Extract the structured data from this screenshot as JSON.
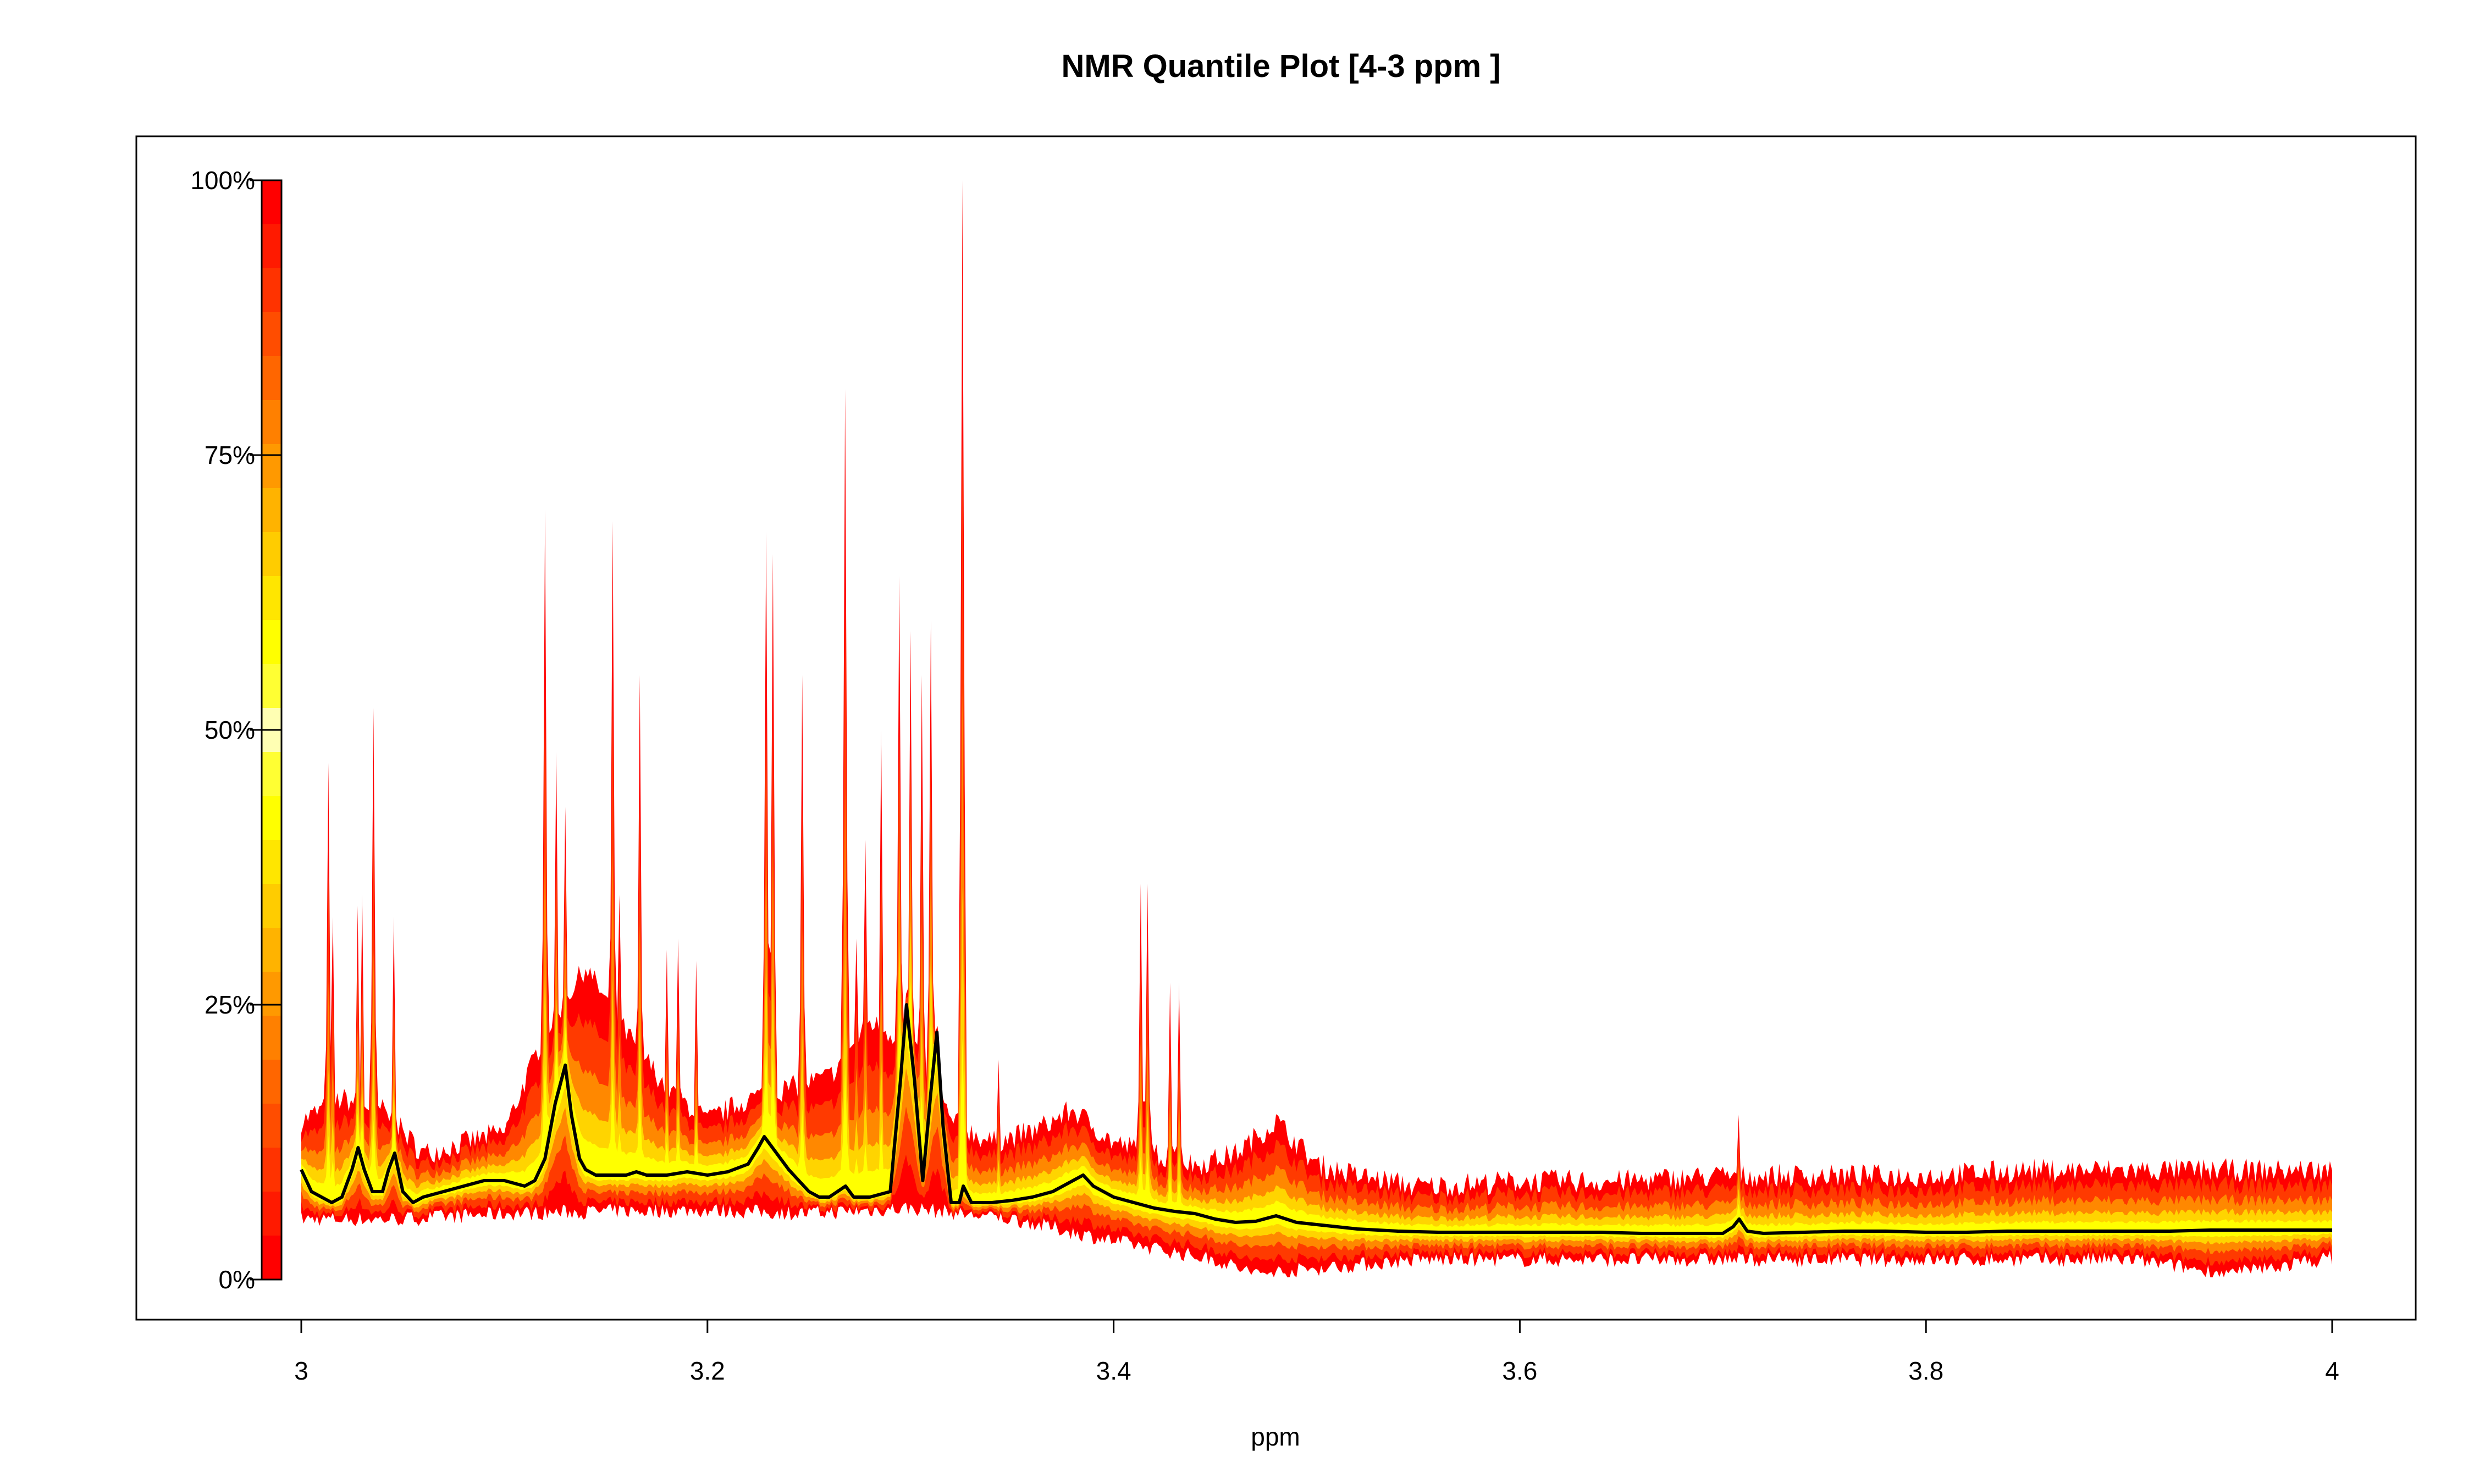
{
  "chart_data": {
    "type": "area",
    "title": "NMR Quantile Plot [4-3 ppm ]",
    "xlabel": "ppm",
    "ylabel": "",
    "xlim": [
      3,
      4
    ],
    "ylim": [
      0,
      100
    ],
    "x_ticks": [
      3,
      3.2,
      3.4,
      3.6,
      3.8,
      4
    ],
    "x_tick_labels": [
      "3",
      "3.2",
      "3.4",
      "3.6",
      "3.8",
      "4"
    ],
    "y_ticks": [
      0,
      25,
      50,
      75,
      100
    ],
    "y_tick_labels": [
      "0%",
      "25%",
      "50%",
      "75%",
      "100%"
    ],
    "grid": false,
    "legend": "left color bar",
    "colors": {
      "band_max": "#ff0000",
      "band_outer": "#ff3a00",
      "band_mid": "#ff8800",
      "band_inner": "#ffd400",
      "band_center": "#ffff00",
      "median_line": "#000000"
    },
    "color_scale": [
      "#ff0000",
      "#ff1a00",
      "#ff3300",
      "#ff4d00",
      "#ff6600",
      "#ff8000",
      "#ff9900",
      "#ffb300",
      "#ffcc00",
      "#ffe600",
      "#ffff00",
      "#ffff33",
      "#ffffb3",
      "#ffff33",
      "#ffff00",
      "#ffe600",
      "#ffcc00",
      "#ffb300",
      "#ff9900",
      "#ff8000",
      "#ff6600",
      "#ff4d00",
      "#ff3300",
      "#ff1a00",
      "#ff0000"
    ],
    "median_series": {
      "name": "",
      "x": [
        3.0,
        3.005,
        3.01,
        3.015,
        3.02,
        3.025,
        3.028,
        3.031,
        3.035,
        3.04,
        3.043,
        3.046,
        3.05,
        3.055,
        3.06,
        3.07,
        3.08,
        3.09,
        3.1,
        3.11,
        3.115,
        3.12,
        3.125,
        3.13,
        3.133,
        3.137,
        3.14,
        3.145,
        3.15,
        3.155,
        3.16,
        3.165,
        3.17,
        3.18,
        3.19,
        3.2,
        3.21,
        3.22,
        3.225,
        3.228,
        3.232,
        3.236,
        3.24,
        3.245,
        3.25,
        3.255,
        3.26,
        3.268,
        3.272,
        3.28,
        3.29,
        3.295,
        3.298,
        3.302,
        3.306,
        3.31,
        3.313,
        3.316,
        3.32,
        3.324,
        3.326,
        3.33,
        3.34,
        3.35,
        3.36,
        3.37,
        3.38,
        3.385,
        3.39,
        3.4,
        3.41,
        3.42,
        3.43,
        3.44,
        3.45,
        3.46,
        3.47,
        3.48,
        3.49,
        3.5,
        3.52,
        3.54,
        3.56,
        3.58,
        3.6,
        3.62,
        3.64,
        3.66,
        3.68,
        3.7,
        3.705,
        3.708,
        3.712,
        3.72,
        3.74,
        3.76,
        3.78,
        3.8,
        3.82,
        3.84,
        3.86,
        3.88,
        3.9,
        3.92,
        3.94,
        3.96,
        3.98,
        4.0
      ],
      "y": [
        10,
        8,
        7.5,
        7,
        7.5,
        10,
        12,
        10,
        8,
        8,
        10,
        11.5,
        8,
        7,
        7.5,
        8,
        8.5,
        9,
        9,
        8.5,
        9,
        11,
        16,
        19.5,
        15,
        11,
        10,
        9.5,
        9.5,
        9.5,
        9.5,
        9.8,
        9.5,
        9.5,
        9.8,
        9.5,
        9.8,
        10.5,
        12,
        13,
        12,
        11,
        10,
        9,
        8,
        7.5,
        7.5,
        8.5,
        7.5,
        7.5,
        8,
        18,
        25,
        18,
        9,
        17,
        22.5,
        14,
        7,
        7,
        8.5,
        7,
        7,
        7.2,
        7.5,
        8,
        9,
        9.5,
        8.5,
        7.5,
        7,
        6.5,
        6.2,
        6,
        5.5,
        5.2,
        5.3,
        5.8,
        5.2,
        5,
        4.6,
        4.4,
        4.3,
        4.3,
        4.3,
        4.3,
        4.3,
        4.2,
        4.2,
        4.2,
        4.8,
        5.5,
        4.4,
        4.2,
        4.3,
        4.4,
        4.4,
        4.3,
        4.3,
        4.4,
        4.4,
        4.4,
        4.4,
        4.4,
        4.5,
        4.5,
        4.5,
        4.5
      ]
    },
    "max_peaks": {
      "x": [
        3.013,
        3.015,
        3.028,
        3.03,
        3.035,
        3.046,
        3.12,
        3.125,
        3.13,
        3.153,
        3.157,
        3.167,
        3.18,
        3.185,
        3.195,
        3.229,
        3.232,
        3.247,
        3.268,
        3.273,
        3.278,
        3.285,
        3.295,
        3.3,
        3.305,
        3.31,
        3.326,
        3.343,
        3.413,
        3.417,
        3.428,
        3.432,
        3.485,
        3.708
      ],
      "y": [
        47,
        33,
        34,
        35,
        52,
        33,
        70,
        48,
        43,
        69,
        35,
        55,
        30,
        31,
        29,
        68,
        66,
        55,
        81,
        31,
        40,
        50,
        64,
        59,
        55,
        60,
        100,
        20,
        36,
        36,
        27,
        27,
        14,
        15
      ]
    },
    "envelope": {
      "max": {
        "x": [
          3.0,
          3.02,
          3.04,
          3.06,
          3.08,
          3.1,
          3.12,
          3.14,
          3.16,
          3.18,
          3.2,
          3.22,
          3.24,
          3.26,
          3.28,
          3.3,
          3.32,
          3.34,
          3.36,
          3.38,
          3.4,
          3.42,
          3.44,
          3.46,
          3.48,
          3.5,
          3.52,
          3.55,
          3.6,
          3.65,
          3.7,
          3.75,
          3.8,
          3.85,
          3.9,
          3.95,
          4.0
        ],
        "y": [
          14,
          16,
          15,
          11,
          12,
          13,
          22,
          28,
          22,
          17,
          14,
          16,
          17,
          18,
          23,
          21,
          14,
          12,
          13,
          15,
          12,
          11,
          10,
          11,
          14,
          10,
          9,
          8,
          8.5,
          8.5,
          9,
          9,
          9,
          9.5,
          9.5,
          9.5,
          9.5
        ]
      },
      "min": {
        "x": [
          3.0,
          3.05,
          3.1,
          3.15,
          3.2,
          3.25,
          3.3,
          3.35,
          3.4,
          3.45,
          3.47,
          3.5,
          3.55,
          3.6,
          3.7,
          3.8,
          3.9,
          3.95,
          4.0
        ],
        "y": [
          5.5,
          5.5,
          6,
          6.2,
          6.3,
          6,
          6.5,
          5.5,
          3.5,
          1.8,
          0.5,
          1,
          1.8,
          1.8,
          1.8,
          1.8,
          1.8,
          0.5,
          2
        ]
      }
    }
  }
}
